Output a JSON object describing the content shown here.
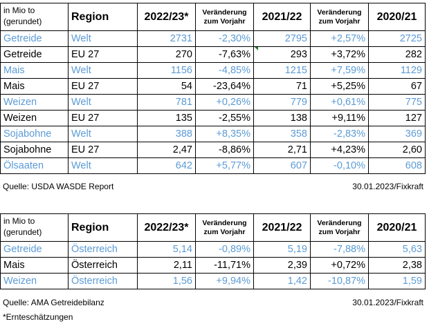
{
  "header": {
    "unit": "in Mio to (gerundet)",
    "unit_line1": "in Mio to",
    "unit_line2": "(gerundet)",
    "region": "Region",
    "year1": "2022/23*",
    "change1_line1": "Veränderung",
    "change1_line2": "zum Vorjahr",
    "year2": "2021/22",
    "change2_line1": "Veränderung",
    "change2_line2": "zum Vorjahr",
    "year3": "2020/21"
  },
  "table1": {
    "rows": [
      {
        "product": "Getreide",
        "region": "Welt",
        "v1": "2731",
        "c1": "-2,30%",
        "v2": "2795",
        "c2": "+2,57%",
        "v3": "2725",
        "style": "blue"
      },
      {
        "product": "Getreide",
        "region": "EU 27",
        "v1": "270",
        "c1": "-7,63%",
        "v2": "293",
        "c2": "+3,72%",
        "v3": "282",
        "style": "black"
      },
      {
        "product": "Mais",
        "region": "Welt",
        "v1": "1156",
        "c1": "-4,85%",
        "v2": "1215",
        "c2": "+7,59%",
        "v3": "1129",
        "style": "blue"
      },
      {
        "product": "Mais",
        "region": "EU 27",
        "v1": "54",
        "c1": "-23,64%",
        "v2": "71",
        "c2": "+5,25%",
        "v3": "67",
        "style": "black"
      },
      {
        "product": "Weizen",
        "region": "Welt",
        "v1": "781",
        "c1": "+0,26%",
        "v2": "779",
        "c2": "+0,61%",
        "v3": "775",
        "style": "blue"
      },
      {
        "product": "Weizen",
        "region": "EU 27",
        "v1": "135",
        "c1": "-2,55%",
        "v2": "138",
        "c2": "+9,11%",
        "v3": "127",
        "style": "black"
      },
      {
        "product": "Sojabohne",
        "region": "Welt",
        "v1": "388",
        "c1": "+8,35%",
        "v2": "358",
        "c2": "-2,83%",
        "v3": "369",
        "style": "blue"
      },
      {
        "product": "Sojabohne",
        "region": "EU 27",
        "v1": "2,47",
        "c1": "-8,86%",
        "v2": "2,71",
        "c2": "+4,23%",
        "v3": "2,60",
        "style": "black"
      },
      {
        "product": "Ölsaaten",
        "region": "Welt",
        "v1": "642",
        "c1": "+5,77%",
        "v2": "607",
        "c2": "-0,10%",
        "v3": "608",
        "style": "blue"
      }
    ],
    "source": "Quelle: USDA WASDE Report",
    "date": "30.01.2023/Fixkraft"
  },
  "table2": {
    "rows": [
      {
        "product": "Getreide",
        "region": "Österreich",
        "v1": "5,14",
        "c1": "-0,89%",
        "v2": "5,19",
        "c2": "-7,88%",
        "v3": "5,63",
        "style": "blue"
      },
      {
        "product": "Mais",
        "region": "Österreich",
        "v1": "2,11",
        "c1": "-11,71%",
        "v2": "2,39",
        "c2": "+0,72%",
        "v3": "2,38",
        "style": "black"
      },
      {
        "product": "Weizen",
        "region": "Österreich",
        "v1": "1,56",
        "c1": "+9,94%",
        "v2": "1,42",
        "c2": "-10,87%",
        "v3": "1,59",
        "style": "blue"
      }
    ],
    "source": "Quelle: AMA Getreidebilanz",
    "date": "30.01.2023/Fixkraft"
  },
  "footnote": "*Ernteschätzungen",
  "colors": {
    "blue_rows": "#5b9bd5",
    "black_rows": "#000000",
    "comment_marker": "#1e7b34"
  }
}
